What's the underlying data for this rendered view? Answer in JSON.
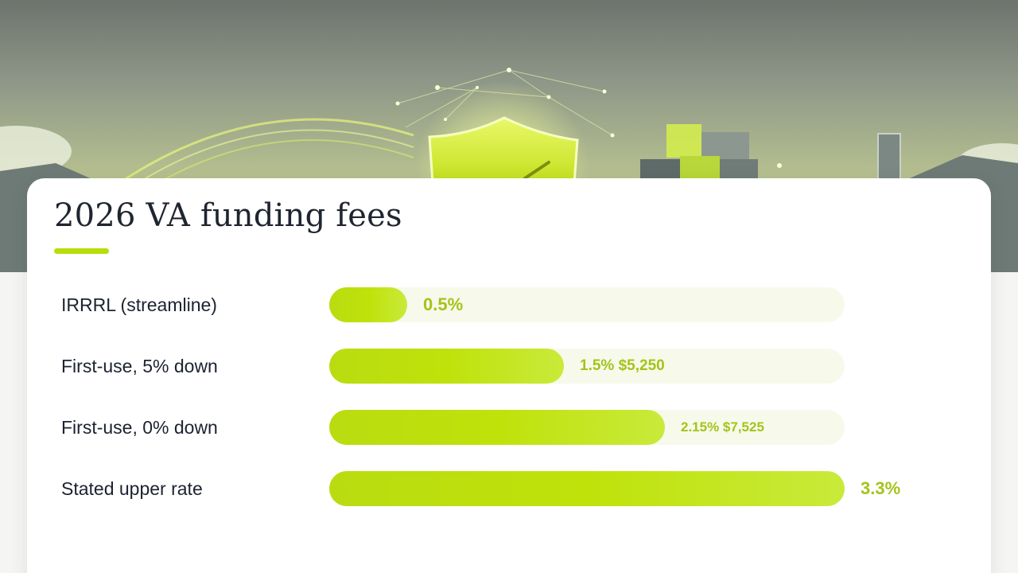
{
  "chart_data": {
    "type": "bar",
    "title": "2026 VA funding fees",
    "categories": [
      "IRRRL (streamline)",
      "First-use, 5% down",
      "First-use, 0% down",
      "Stated upper rate"
    ],
    "values": [
      0.5,
      1.5,
      2.15,
      3.3
    ],
    "value_labels": [
      "0.5%",
      "1.5% $5,250",
      "2.15% $7,525",
      "3.3%"
    ],
    "xlim": [
      0,
      3.3
    ],
    "grid": false,
    "orientation": "horizontal"
  },
  "colors": {
    "bar": "#bfe20a",
    "track": "#f7f9ea",
    "value_text": "#a3c41a",
    "accent": "#b7de0a"
  },
  "icons": [
    "shield-icon"
  ]
}
